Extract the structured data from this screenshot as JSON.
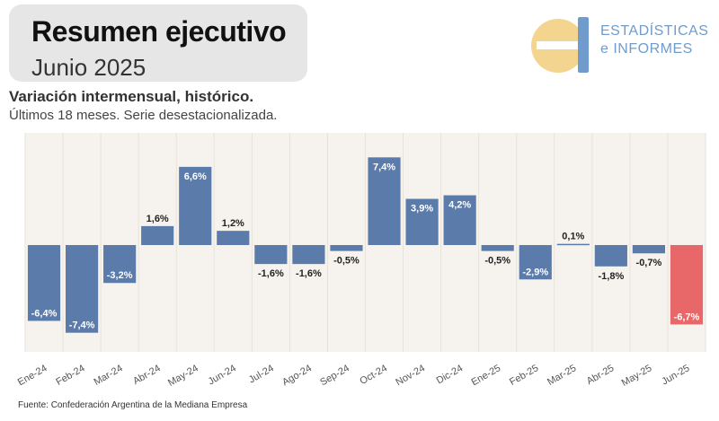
{
  "header": {
    "title": "Resumen ejecutivo",
    "date": "Junio 2025"
  },
  "logo": {
    "line1": "ESTADÍSTICAS",
    "line2": "e INFORMES",
    "icon": "ei-logo-icon",
    "colors": {
      "yellow": "#f3d58f",
      "blue": "#6f9ccc"
    }
  },
  "chart_title": "Variación intermensual, histórico.",
  "chart_subtitle": "Últimos 18 meses. Serie desestacionalizada.",
  "source": "Fuente: Confederación Argentina de la Mediana Empresa",
  "chart_data": {
    "type": "bar",
    "categories": [
      "Ene-24",
      "Feb-24",
      "Mar-24",
      "Abr-24",
      "May-24",
      "Jun-24",
      "Jul-24",
      "Ago-24",
      "Sep-24",
      "Oct-24",
      "Nov-24",
      "Dic-24",
      "Ene-25",
      "Feb-25",
      "Mar-25",
      "Abr-25",
      "May-25",
      "Jun-25"
    ],
    "values": [
      -6.4,
      -7.4,
      -3.2,
      1.6,
      6.6,
      1.2,
      -1.6,
      -1.6,
      -0.5,
      7.4,
      3.9,
      4.2,
      -0.5,
      -2.9,
      0.1,
      -1.8,
      -0.7,
      -6.7
    ],
    "labels": [
      "-6,4%",
      "-7,4%",
      "-3,2%",
      "1,6%",
      "6,6%",
      "1,2%",
      "-1,6%",
      "-1,6%",
      "-0,5%",
      "7,4%",
      "3,9%",
      "4,2%",
      "-0,5%",
      "-2,9%",
      "0,1%",
      "-1,8%",
      "-0,7%",
      "-6,7%"
    ],
    "highlight_index": 17,
    "colors": {
      "bar": "#5b7bab",
      "highlight": "#e8686a",
      "panel": "#f6f3ee",
      "gridline": "#e6e2dc"
    },
    "ylim": [
      -8,
      8.2
    ],
    "grid": true
  }
}
